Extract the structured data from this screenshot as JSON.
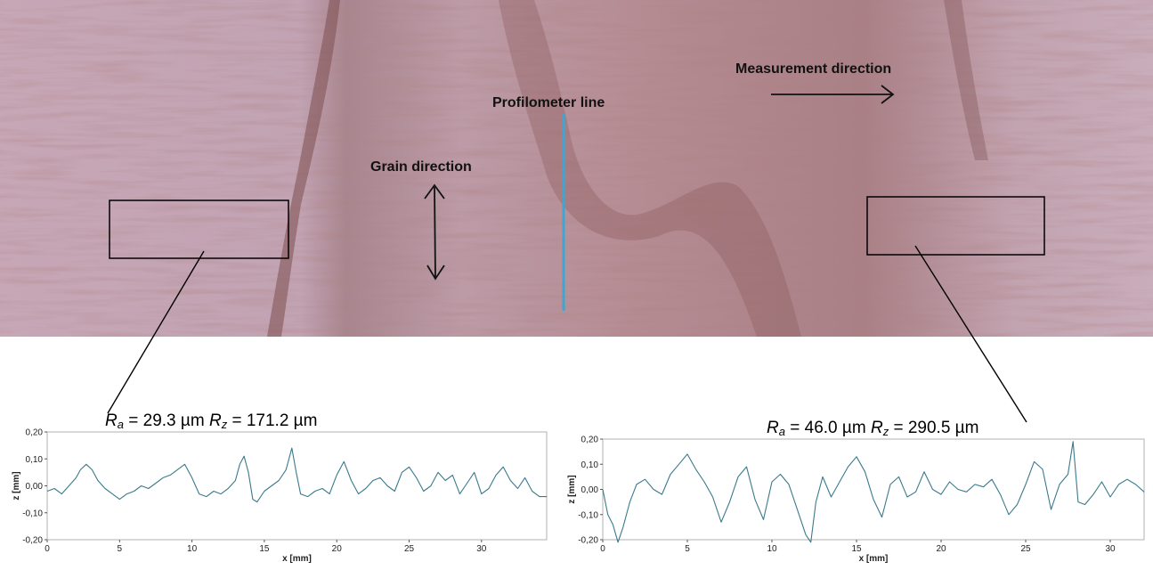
{
  "photo": {
    "profilometer_line_label": "Profilometer line",
    "grain_direction_label": "Grain direction",
    "measurement_direction_label": "Measurement direction",
    "profilometer_line_color": "#3fa6d2",
    "surface_base_color": "#b78d96"
  },
  "chart_data": [
    {
      "type": "line",
      "title": "",
      "roughness": {
        "ra": "29.3 µm",
        "rz": "171.2 µm"
      },
      "xlabel": "x [mm]",
      "ylabel": "z [mm]",
      "xlim": [
        0,
        34.5
      ],
      "ylim": [
        -0.2,
        0.2
      ],
      "xticks": [
        "0",
        "5",
        "10",
        "15",
        "20",
        "25",
        "30"
      ],
      "yticks": [
        "0,20",
        "0,10",
        "0,00",
        "-0,10",
        "-0,20"
      ],
      "line_color": "#3a7a8c",
      "series": [
        {
          "x": [
            0,
            0.5,
            1.0,
            1.5,
            2.0,
            2.3,
            2.7,
            3.1,
            3.5,
            4.0,
            4.5,
            5.0,
            5.5,
            6.0,
            6.5,
            7.0,
            7.5,
            8.0,
            8.5,
            9.0,
            9.5,
            10.0,
            10.5,
            11.0,
            11.5,
            12.0,
            12.5,
            13.0,
            13.3,
            13.6,
            13.9,
            14.2,
            14.5,
            15.0,
            15.5,
            16.0,
            16.5,
            16.9,
            17.2,
            17.5,
            18.0,
            18.5,
            19.0,
            19.5,
            20.0,
            20.5,
            21.0,
            21.5,
            22.0,
            22.5,
            23.0,
            23.5,
            24.0,
            24.5,
            25.0,
            25.5,
            26.0,
            26.5,
            27.0,
            27.5,
            28.0,
            28.5,
            29.0,
            29.5,
            30.0,
            30.5,
            31.0,
            31.5,
            32.0,
            32.5,
            33.0,
            33.5,
            34.0,
            34.5
          ],
          "y": [
            -0.02,
            -0.01,
            -0.03,
            0.0,
            0.03,
            0.06,
            0.08,
            0.06,
            0.02,
            -0.01,
            -0.03,
            -0.05,
            -0.03,
            -0.02,
            0.0,
            -0.01,
            0.01,
            0.03,
            0.04,
            0.06,
            0.08,
            0.03,
            -0.03,
            -0.04,
            -0.02,
            -0.03,
            -0.01,
            0.02,
            0.08,
            0.11,
            0.05,
            -0.05,
            -0.06,
            -0.02,
            0.0,
            0.02,
            0.06,
            0.14,
            0.05,
            -0.03,
            -0.04,
            -0.02,
            -0.01,
            -0.03,
            0.04,
            0.09,
            0.02,
            -0.03,
            -0.01,
            0.02,
            0.03,
            0.0,
            -0.02,
            0.05,
            0.07,
            0.03,
            -0.02,
            0.0,
            0.05,
            0.02,
            0.04,
            -0.03,
            0.01,
            0.05,
            -0.03,
            -0.01,
            0.04,
            0.07,
            0.02,
            -0.01,
            0.03,
            -0.02,
            -0.04,
            -0.04
          ]
        }
      ]
    },
    {
      "type": "line",
      "title": "",
      "roughness": {
        "ra": "46.0 µm",
        "rz": "290.5 µm"
      },
      "xlabel": "x [mm]",
      "ylabel": "z [mm]",
      "xlim": [
        0,
        32.0
      ],
      "ylim": [
        -0.2,
        0.2
      ],
      "xticks": [
        "0",
        "5",
        "10",
        "15",
        "20",
        "25",
        "30"
      ],
      "yticks": [
        "0,20",
        "0,10",
        "0,00",
        "-0,10",
        "-0,20"
      ],
      "line_color": "#3a7a8c",
      "series": [
        {
          "x": [
            0,
            0.3,
            0.6,
            0.9,
            1.2,
            1.6,
            2.0,
            2.5,
            3.0,
            3.5,
            4.0,
            4.5,
            5.0,
            5.5,
            6.0,
            6.5,
            7.0,
            7.5,
            8.0,
            8.5,
            9.0,
            9.5,
            10.0,
            10.5,
            11.0,
            11.5,
            12.0,
            12.3,
            12.6,
            13.0,
            13.5,
            14.0,
            14.5,
            15.0,
            15.5,
            16.0,
            16.5,
            17.0,
            17.5,
            18.0,
            18.5,
            19.0,
            19.5,
            20.0,
            20.5,
            21.0,
            21.5,
            22.0,
            22.5,
            23.0,
            23.5,
            24.0,
            24.5,
            25.0,
            25.5,
            26.0,
            26.5,
            27.0,
            27.5,
            27.8,
            28.1,
            28.5,
            29.0,
            29.5,
            30.0,
            30.5,
            31.0,
            31.5,
            32.0
          ],
          "y": [
            0.0,
            -0.1,
            -0.14,
            -0.21,
            -0.15,
            -0.05,
            0.02,
            0.04,
            0.0,
            -0.02,
            0.06,
            0.1,
            0.14,
            0.08,
            0.03,
            -0.03,
            -0.13,
            -0.05,
            0.05,
            0.09,
            -0.04,
            -0.12,
            0.03,
            0.06,
            0.02,
            -0.08,
            -0.18,
            -0.21,
            -0.05,
            0.05,
            -0.03,
            0.03,
            0.09,
            0.13,
            0.07,
            -0.04,
            -0.11,
            0.02,
            0.05,
            -0.03,
            -0.01,
            0.07,
            0.0,
            -0.02,
            0.03,
            0.0,
            -0.01,
            0.02,
            0.01,
            0.04,
            -0.02,
            -0.1,
            -0.06,
            0.02,
            0.11,
            0.08,
            -0.08,
            0.02,
            0.06,
            0.19,
            -0.05,
            -0.06,
            -0.02,
            0.03,
            -0.03,
            0.02,
            0.04,
            0.02,
            -0.01
          ]
        }
      ]
    }
  ]
}
